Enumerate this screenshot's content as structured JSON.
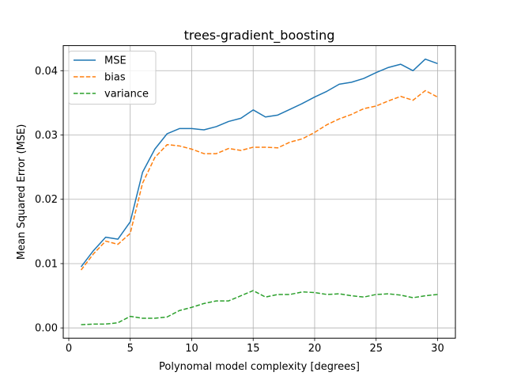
{
  "chart_data": {
    "type": "line",
    "title": "trees-gradient_boosting",
    "xlabel": "Polynomal model complexity [degrees]",
    "ylabel": "Mean Squared Error (MSE)",
    "xlim": [
      -0.45,
      31.45
    ],
    "ylim": [
      -0.0016,
      0.0439
    ],
    "xticks": [
      0,
      5,
      10,
      15,
      20,
      25,
      30
    ],
    "xtick_labels": [
      "0",
      "5",
      "10",
      "15",
      "20",
      "25",
      "30"
    ],
    "yticks": [
      0.0,
      0.01,
      0.02,
      0.03,
      0.04
    ],
    "ytick_labels": [
      "0.00",
      "0.01",
      "0.02",
      "0.03",
      "0.04"
    ],
    "grid": true,
    "legend_position": "top-left",
    "x": [
      1,
      2,
      3,
      4,
      5,
      6,
      7,
      8,
      9,
      10,
      11,
      12,
      13,
      14,
      15,
      16,
      17,
      18,
      19,
      20,
      21,
      22,
      23,
      24,
      25,
      26,
      27,
      28,
      29,
      30
    ],
    "series": [
      {
        "name": "MSE",
        "color": "#1f77b4",
        "style": "solid",
        "values": [
          0.0095,
          0.012,
          0.0141,
          0.0138,
          0.0165,
          0.0242,
          0.0278,
          0.0302,
          0.031,
          0.031,
          0.0308,
          0.0313,
          0.0321,
          0.0326,
          0.0339,
          0.0328,
          0.0331,
          0.034,
          0.0349,
          0.0359,
          0.0368,
          0.0379,
          0.0382,
          0.0388,
          0.0397,
          0.0405,
          0.041,
          0.04,
          0.0418,
          0.0411
        ]
      },
      {
        "name": "bias",
        "color": "#ff7f0e",
        "style": "dashed",
        "values": [
          0.009,
          0.0115,
          0.0135,
          0.013,
          0.0147,
          0.0225,
          0.0265,
          0.0285,
          0.0283,
          0.0278,
          0.0271,
          0.0271,
          0.0279,
          0.0276,
          0.0281,
          0.0281,
          0.028,
          0.0289,
          0.0294,
          0.0304,
          0.0316,
          0.0325,
          0.0332,
          0.0341,
          0.0345,
          0.0353,
          0.036,
          0.0354,
          0.0369,
          0.0359
        ]
      },
      {
        "name": "variance",
        "color": "#2ca02c",
        "style": "dashed",
        "values": [
          0.0005,
          0.0006,
          0.0006,
          0.0008,
          0.0018,
          0.0015,
          0.0015,
          0.0017,
          0.0027,
          0.0032,
          0.0038,
          0.0042,
          0.0042,
          0.005,
          0.0058,
          0.0048,
          0.0052,
          0.0052,
          0.0056,
          0.0055,
          0.0052,
          0.0053,
          0.005,
          0.0048,
          0.0052,
          0.0053,
          0.0051,
          0.0047,
          0.005,
          0.0052
        ]
      }
    ]
  }
}
